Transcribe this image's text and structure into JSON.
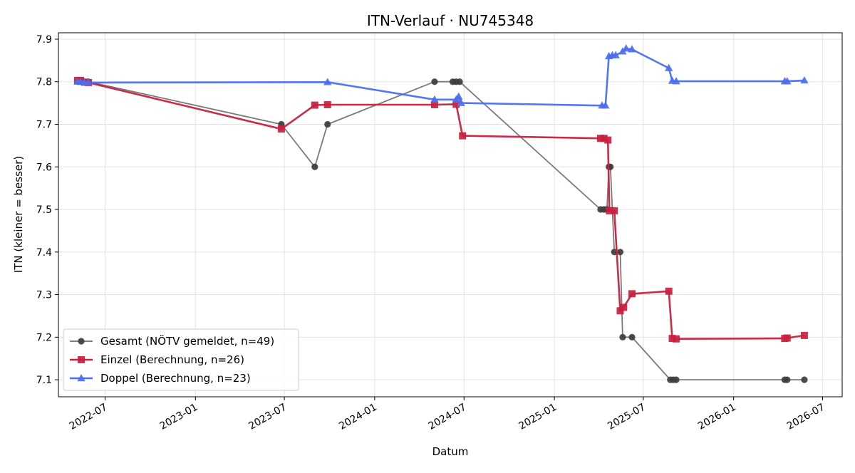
{
  "chart_data": {
    "type": "line",
    "title": "ITN-Verlauf · NU745348",
    "xlabel": "Datum",
    "ylabel": "ITN  (kleiner = besser)",
    "xlim": [
      "2022-03-28",
      "2026-08-10"
    ],
    "ylim": [
      7.06,
      7.915
    ],
    "x_ticks": [
      "2022-07",
      "2023-01",
      "2023-07",
      "2024-01",
      "2024-07",
      "2025-01",
      "2025-07",
      "2026-01",
      "2026-07"
    ],
    "y_ticks": [
      "7.1",
      "7.2",
      "7.3",
      "7.4",
      "7.5",
      "7.6",
      "7.7",
      "7.8",
      "7.9"
    ],
    "grid": true,
    "legend_position": "lower-left",
    "series": [
      {
        "name": "Gesamt (NÖTV gemeldet, n=49)",
        "color": "#6b6b6b",
        "marker": "circle",
        "points": [
          [
            "2022-05-08",
            7.8
          ],
          [
            "2022-05-14",
            7.8
          ],
          [
            "2022-05-20",
            7.8
          ],
          [
            "2022-05-28",
            7.8
          ],
          [
            "2023-06-25",
            7.7
          ],
          [
            "2023-09-01",
            7.6
          ],
          [
            "2023-09-27",
            7.7
          ],
          [
            "2024-05-02",
            7.8
          ],
          [
            "2024-06-08",
            7.8
          ],
          [
            "2024-06-15",
            7.8
          ],
          [
            "2024-06-22",
            7.8
          ],
          [
            "2025-04-05",
            7.5
          ],
          [
            "2025-04-12",
            7.5
          ],
          [
            "2025-04-18",
            7.5
          ],
          [
            "2025-04-22",
            7.6
          ],
          [
            "2025-04-25",
            7.6
          ],
          [
            "2025-05-03",
            7.4
          ],
          [
            "2025-05-15",
            7.4
          ],
          [
            "2025-05-20",
            7.2
          ],
          [
            "2025-06-08",
            7.2
          ],
          [
            "2025-08-25",
            7.1
          ],
          [
            "2025-08-31",
            7.1
          ],
          [
            "2025-09-06",
            7.1
          ],
          [
            "2026-04-15",
            7.1
          ],
          [
            "2026-04-20",
            7.1
          ],
          [
            "2026-05-25",
            7.1
          ]
        ]
      },
      {
        "name": "Einzel (Berechnung, n=26)",
        "color": "#c8203f",
        "marker": "square",
        "points": [
          [
            "2022-05-06",
            7.803
          ],
          [
            "2022-05-12",
            7.803
          ],
          [
            "2022-05-20",
            7.799
          ],
          [
            "2022-05-28",
            7.798
          ],
          [
            "2023-06-25",
            7.689
          ],
          [
            "2023-09-01",
            7.745
          ],
          [
            "2023-09-27",
            7.746
          ],
          [
            "2024-05-02",
            7.746
          ],
          [
            "2024-06-15",
            7.747
          ],
          [
            "2024-06-28",
            7.673
          ],
          [
            "2025-04-05",
            7.667
          ],
          [
            "2025-04-12",
            7.667
          ],
          [
            "2025-04-20",
            7.663
          ],
          [
            "2025-04-23",
            7.497
          ],
          [
            "2025-05-03",
            7.497
          ],
          [
            "2025-05-15",
            7.262
          ],
          [
            "2025-05-22",
            7.27
          ],
          [
            "2025-06-08",
            7.302
          ],
          [
            "2025-08-22",
            7.308
          ],
          [
            "2025-08-29",
            7.197
          ],
          [
            "2025-09-06",
            7.196
          ],
          [
            "2026-04-15",
            7.197
          ],
          [
            "2026-04-20",
            7.198
          ],
          [
            "2026-05-25",
            7.204
          ]
        ]
      },
      {
        "name": "Doppel (Berechnung, n=23)",
        "color": "#4a6ff0",
        "marker": "triangle",
        "points": [
          [
            "2022-05-06",
            7.8
          ],
          [
            "2022-05-12",
            7.8
          ],
          [
            "2022-05-20",
            7.798
          ],
          [
            "2022-05-28",
            7.798
          ],
          [
            "2023-09-27",
            7.799
          ],
          [
            "2024-05-02",
            7.758
          ],
          [
            "2024-06-15",
            7.758
          ],
          [
            "2024-06-20",
            7.765
          ],
          [
            "2024-06-25",
            7.75
          ],
          [
            "2025-04-08",
            7.744
          ],
          [
            "2025-04-15",
            7.744
          ],
          [
            "2025-04-22",
            7.86
          ],
          [
            "2025-04-29",
            7.862
          ],
          [
            "2025-05-06",
            7.862
          ],
          [
            "2025-05-20",
            7.871
          ],
          [
            "2025-05-27",
            7.878
          ],
          [
            "2025-06-08",
            7.876
          ],
          [
            "2025-08-22",
            7.832
          ],
          [
            "2025-08-29",
            7.802
          ],
          [
            "2025-09-06",
            7.801
          ],
          [
            "2026-04-15",
            7.801
          ],
          [
            "2026-04-20",
            7.801
          ],
          [
            "2026-05-25",
            7.803
          ]
        ]
      }
    ]
  }
}
